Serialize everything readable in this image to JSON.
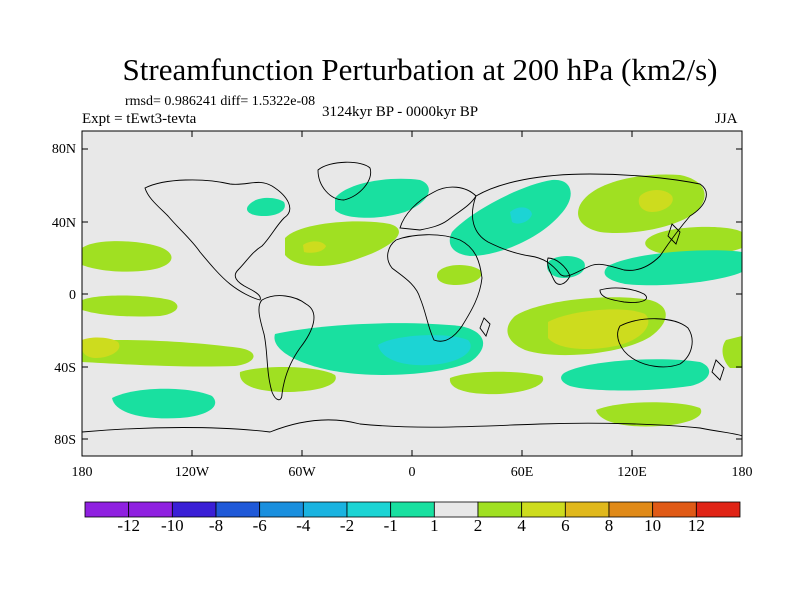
{
  "title": "Streamfunction Perturbation at 200 hPa (km2/s)",
  "stats_line": "rmsd= 0.986241 diff= 1.5322e-08",
  "experiment": "Expt = tEwt3-tevta",
  "period": "3124kyr BP - 0000kyr BP",
  "season": "JJA",
  "lat_labels": [
    "80N",
    "40N",
    "0",
    "40S",
    "80S"
  ],
  "lon_labels": [
    "180",
    "120W",
    "60W",
    "0",
    "60E",
    "120E",
    "180"
  ],
  "colorbar": {
    "labels": [
      "-12",
      "-10",
      "-8",
      "-6",
      "-4",
      "-2",
      "-1",
      "1",
      "2",
      "4",
      "6",
      "8",
      "10",
      "12"
    ],
    "colors": [
      "#8f20e0",
      "#3a1fd6",
      "#1f59d8",
      "#1a8fde",
      "#1ab3e0",
      "#1cd4d4",
      "#19e0a0",
      "#e8e8e8",
      "#a0e022",
      "#cddc1e",
      "#e0b81c",
      "#e08a18",
      "#e05a16",
      "#e02416"
    ]
  },
  "map": {
    "fill_colors": {
      "background": "#e8e8e8",
      "minus_1_to_minus_2": "#19e0a0",
      "minus_2_to_minus_4": "#1cd4d4",
      "plus_1_to_2": "#a0e022",
      "plus_2_to_4": "#cddc1e"
    }
  }
}
